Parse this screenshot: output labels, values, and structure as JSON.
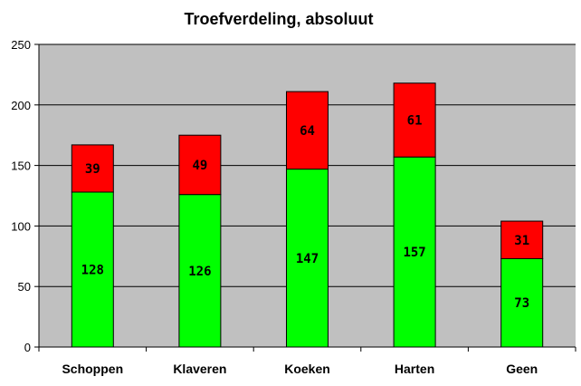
{
  "chart_data": {
    "type": "bar",
    "stacked": true,
    "title": "Troefverdeling, absoluut",
    "xlabel": "",
    "ylabel": "",
    "ylim": [
      0,
      250
    ],
    "yticks": [
      0,
      50,
      100,
      150,
      200,
      250
    ],
    "grid": true,
    "legend": "none",
    "categories": [
      "Schoppen",
      "Klaveren",
      "Koeken",
      "Harten",
      "Geen"
    ],
    "series": [
      {
        "values": [
          128,
          126,
          147,
          157,
          73
        ],
        "color": "#00ff00"
      },
      {
        "values": [
          39,
          49,
          64,
          61,
          31
        ],
        "color": "#ff0000"
      }
    ],
    "plot_background": "#c0c0c0",
    "gridline_color": "#000000"
  }
}
